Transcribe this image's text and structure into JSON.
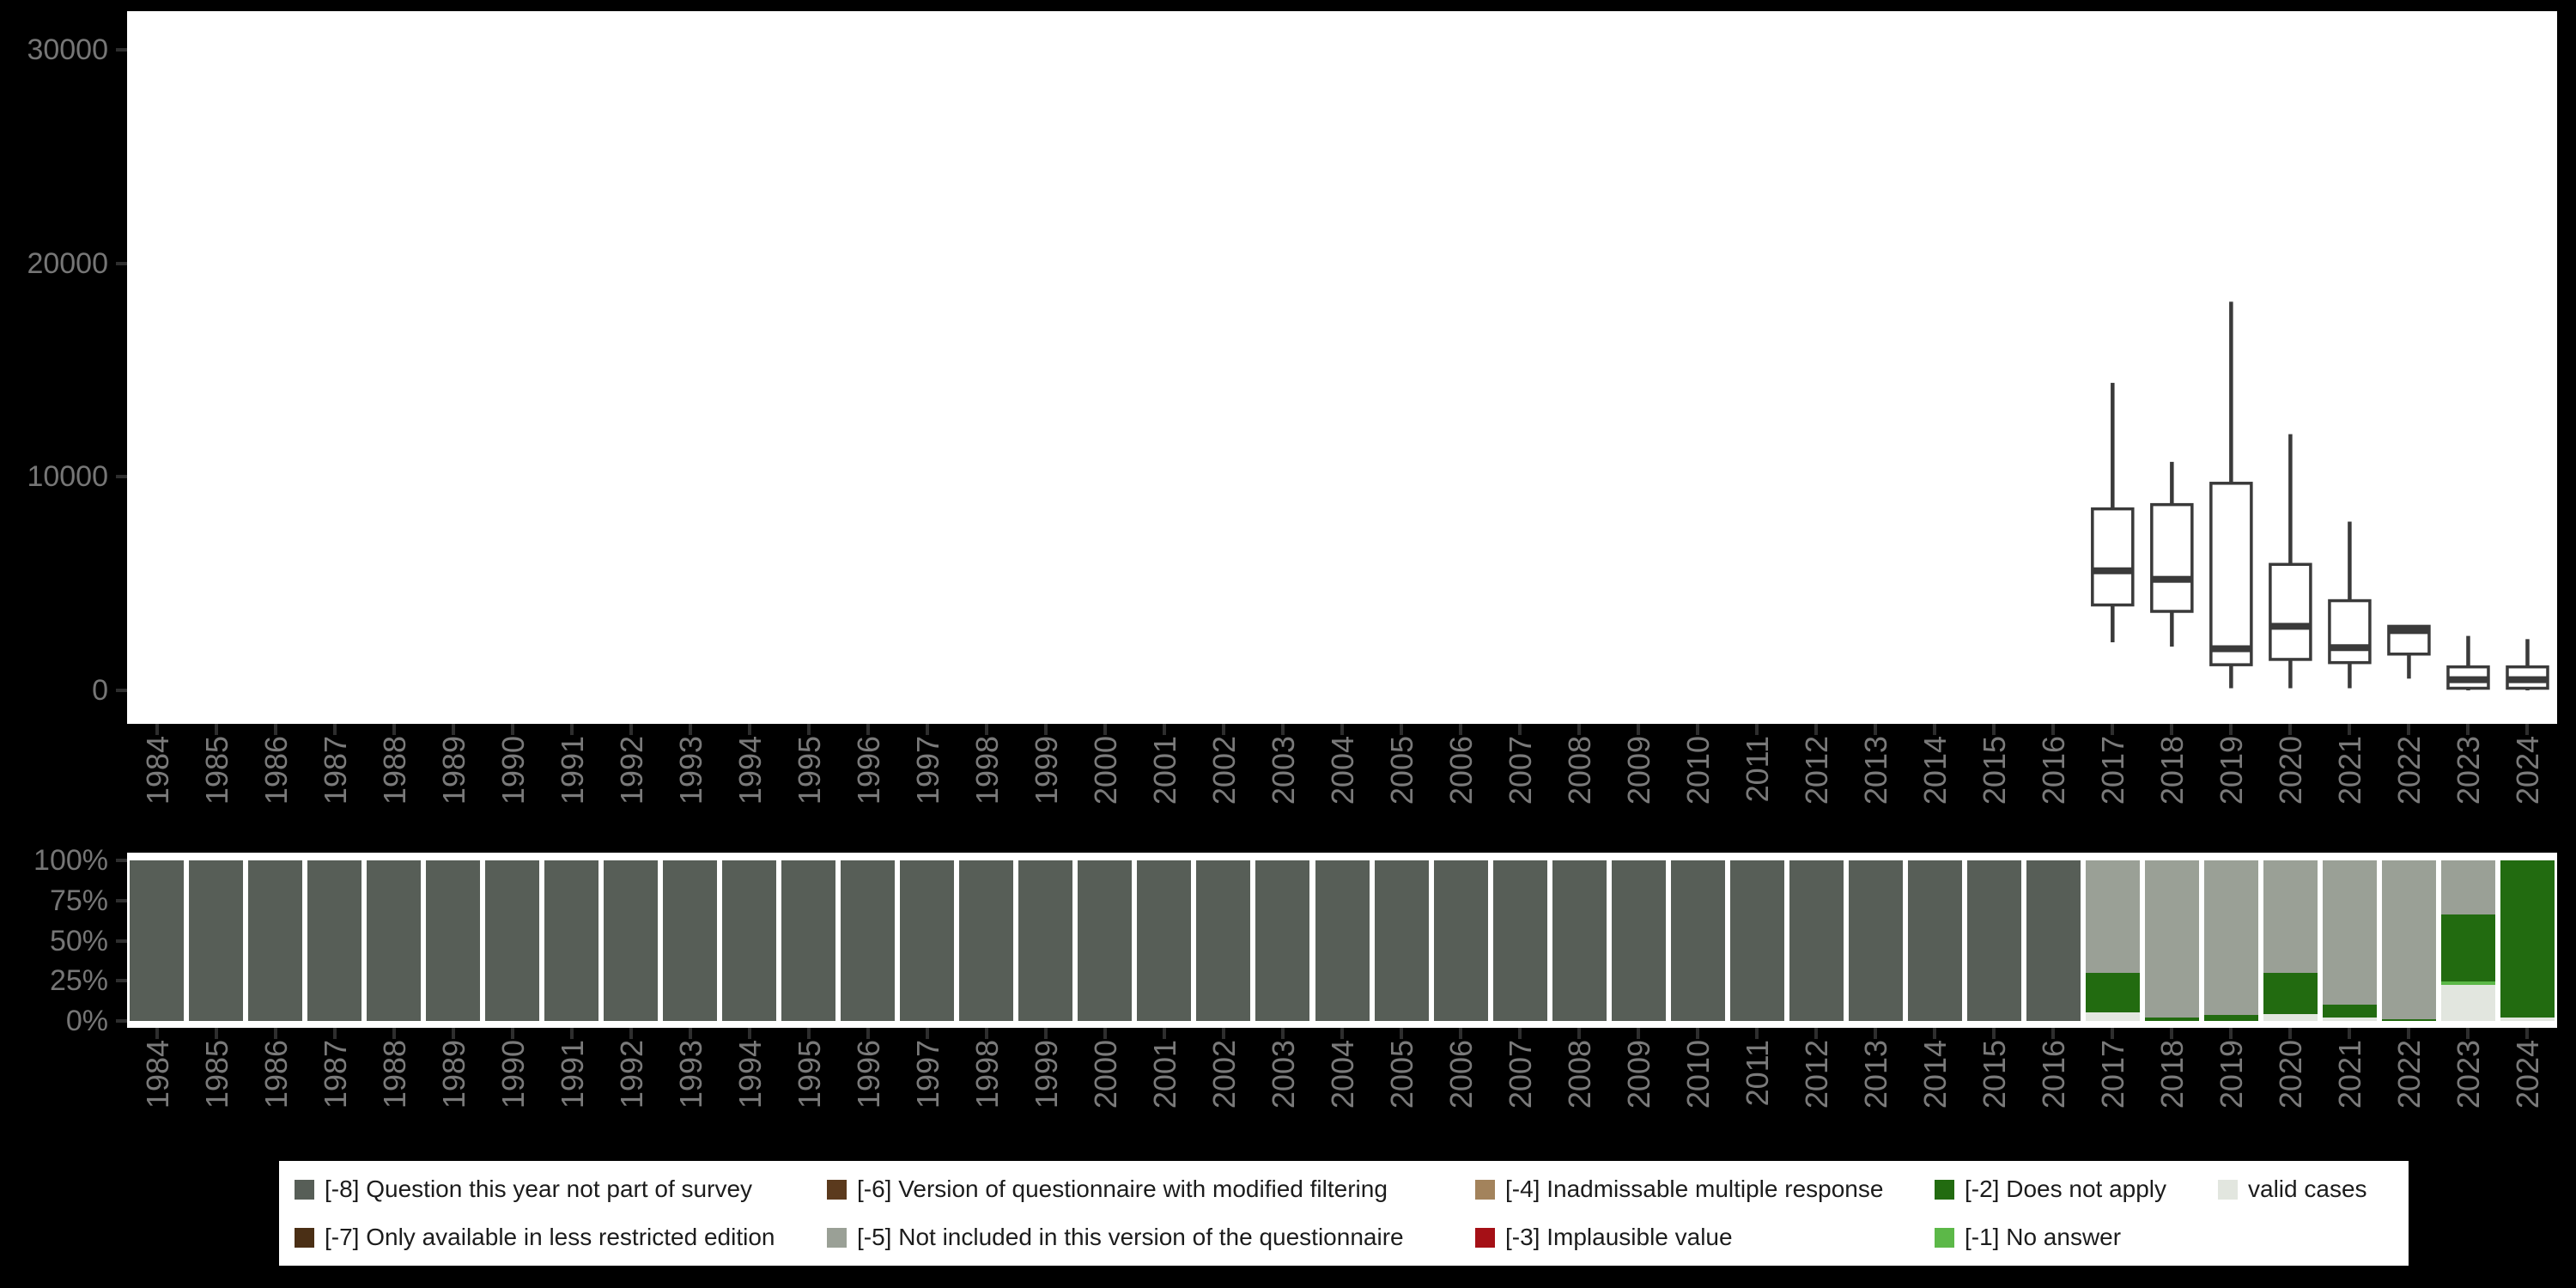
{
  "colors": {
    "background": "#000000",
    "panel": "#ffffff",
    "box_stroke": "#3a3a3a",
    "axis_text": "#767676",
    "axis_tick": "#2e2e2e",
    "m8": "#575e57",
    "m7": "#4a2f15",
    "m6": "#5b3a1d",
    "m5": "#9aa096",
    "m4": "#a3835c",
    "m3": "#a51016",
    "m2": "#226b10",
    "m1": "#5cb848",
    "valid": "#e2e6df"
  },
  "years": [
    "1984",
    "1985",
    "1986",
    "1987",
    "1988",
    "1989",
    "1990",
    "1991",
    "1992",
    "1993",
    "1994",
    "1995",
    "1996",
    "1997",
    "1998",
    "1999",
    "2000",
    "2001",
    "2002",
    "2003",
    "2004",
    "2005",
    "2006",
    "2007",
    "2008",
    "2009",
    "2010",
    "2011",
    "2012",
    "2013",
    "2014",
    "2015",
    "2016",
    "2017",
    "2018",
    "2019",
    "2020",
    "2021",
    "2022",
    "2023",
    "2024"
  ],
  "chart_data": [
    {
      "type": "boxplot",
      "title": "",
      "xlabel": "",
      "ylabel": "",
      "categories": [
        "1984",
        "1985",
        "1986",
        "1987",
        "1988",
        "1989",
        "1990",
        "1991",
        "1992",
        "1993",
        "1994",
        "1995",
        "1996",
        "1997",
        "1998",
        "1999",
        "2000",
        "2001",
        "2002",
        "2003",
        "2004",
        "2005",
        "2006",
        "2007",
        "2008",
        "2009",
        "2010",
        "2011",
        "2012",
        "2013",
        "2014",
        "2015",
        "2016",
        "2017",
        "2018",
        "2019",
        "2020",
        "2021",
        "2022",
        "2023",
        "2024"
      ],
      "ylim": [
        -1570,
        31800
      ],
      "yticks": [
        {
          "value": 30000,
          "label": "30000"
        },
        {
          "value": 20000,
          "label": "20000"
        },
        {
          "value": 10000,
          "label": "10000"
        },
        {
          "value": 0,
          "label": "0"
        }
      ],
      "grid": false,
      "legend_position": "none",
      "boxes": {
        "2017": {
          "min": 2250,
          "q1": 4000,
          "median": 5600,
          "q3": 8500,
          "max": 14400
        },
        "2018": {
          "min": 2050,
          "q1": 3700,
          "median": 5200,
          "q3": 8700,
          "max": 10700
        },
        "2019": {
          "min": 100,
          "q1": 1200,
          "median": 1950,
          "q3": 9700,
          "max": 18200
        },
        "2020": {
          "min": 100,
          "q1": 1450,
          "median": 3000,
          "q3": 5900,
          "max": 12000
        },
        "2021": {
          "min": 100,
          "q1": 1300,
          "median": 2000,
          "q3": 4200,
          "max": 7900
        },
        "2022": {
          "min": 550,
          "q1": 1700,
          "median": 2800,
          "q3": 3000,
          "max": 3000
        },
        "2023": {
          "min": 0,
          "q1": 100,
          "median": 500,
          "q3": 1100,
          "max": 2550
        },
        "2024": {
          "min": 0,
          "q1": 100,
          "median": 500,
          "q3": 1100,
          "max": 2400
        }
      }
    },
    {
      "type": "bar",
      "subtype": "stacked_percent",
      "title": "",
      "xlabel": "",
      "ylabel": "",
      "categories": [
        "1984",
        "1985",
        "1986",
        "1987",
        "1988",
        "1989",
        "1990",
        "1991",
        "1992",
        "1993",
        "1994",
        "1995",
        "1996",
        "1997",
        "1998",
        "1999",
        "2000",
        "2001",
        "2002",
        "2003",
        "2004",
        "2005",
        "2006",
        "2007",
        "2008",
        "2009",
        "2010",
        "2011",
        "2012",
        "2013",
        "2014",
        "2015",
        "2016",
        "2017",
        "2018",
        "2019",
        "2020",
        "2021",
        "2022",
        "2023",
        "2024"
      ],
      "ylim": [
        0,
        100
      ],
      "yticks": [
        {
          "value": 100,
          "label": "100%"
        },
        {
          "value": 75,
          "label": "75%"
        },
        {
          "value": 50,
          "label": "50%"
        },
        {
          "value": 25,
          "label": "25%"
        },
        {
          "value": 0,
          "label": "0%"
        }
      ],
      "stack_order_top_to_bottom": [
        "m8",
        "m7",
        "m6",
        "m5",
        "m4",
        "m3",
        "m2",
        "m1",
        "valid"
      ],
      "bars": {
        "1984": {
          "m8": 100
        },
        "1985": {
          "m8": 100
        },
        "1986": {
          "m8": 100
        },
        "1987": {
          "m8": 100
        },
        "1988": {
          "m8": 100
        },
        "1989": {
          "m8": 100
        },
        "1990": {
          "m8": 100
        },
        "1991": {
          "m8": 100
        },
        "1992": {
          "m8": 100
        },
        "1993": {
          "m8": 100
        },
        "1994": {
          "m8": 100
        },
        "1995": {
          "m8": 100
        },
        "1996": {
          "m8": 100
        },
        "1997": {
          "m8": 100
        },
        "1998": {
          "m8": 100
        },
        "1999": {
          "m8": 100
        },
        "2000": {
          "m8": 100
        },
        "2001": {
          "m8": 100
        },
        "2002": {
          "m8": 100
        },
        "2003": {
          "m8": 100
        },
        "2004": {
          "m8": 100
        },
        "2005": {
          "m8": 100
        },
        "2006": {
          "m8": 100
        },
        "2007": {
          "m8": 100
        },
        "2008": {
          "m8": 100
        },
        "2009": {
          "m8": 100
        },
        "2010": {
          "m8": 100
        },
        "2011": {
          "m8": 100
        },
        "2012": {
          "m8": 100
        },
        "2013": {
          "m8": 100
        },
        "2014": {
          "m8": 100
        },
        "2015": {
          "m8": 100
        },
        "2016": {
          "m8": 100
        },
        "2017": {
          "m5": 70.2,
          "m2": 24.3,
          "valid": 5.5
        },
        "2018": {
          "m5": 97.9,
          "m2": 2.1
        },
        "2019": {
          "m5": 96.5,
          "m2": 3.5
        },
        "2020": {
          "m5": 70.3,
          "m2": 25.4,
          "valid": 4.3
        },
        "2021": {
          "m5": 89.7,
          "m2": 8.3,
          "valid": 2.0
        },
        "2022": {
          "m5": 99.1,
          "m2": 0.9
        },
        "2023": {
          "m5": 33.5,
          "m2": 41.7,
          "m1": 2.1,
          "valid": 22.7
        },
        "2024": {
          "m2": 98.0,
          "valid": 2.0
        }
      }
    }
  ],
  "legend": {
    "items": [
      {
        "key": "m8",
        "label": "[-8] Question this year not part of survey"
      },
      {
        "key": "m7",
        "label": "[-7] Only available in less restricted edition"
      },
      {
        "key": "m6",
        "label": "[-6] Version of questionnaire with modified filtering"
      },
      {
        "key": "m5",
        "label": "[-5] Not included in this version of the questionnaire"
      },
      {
        "key": "m4",
        "label": "[-4] Inadmissable multiple response"
      },
      {
        "key": "m3",
        "label": "[-3] Implausible value"
      },
      {
        "key": "m2",
        "label": "[-2] Does not apply"
      },
      {
        "key": "m1",
        "label": "[-1] No answer"
      },
      {
        "key": "valid",
        "label": "valid cases"
      }
    ]
  }
}
